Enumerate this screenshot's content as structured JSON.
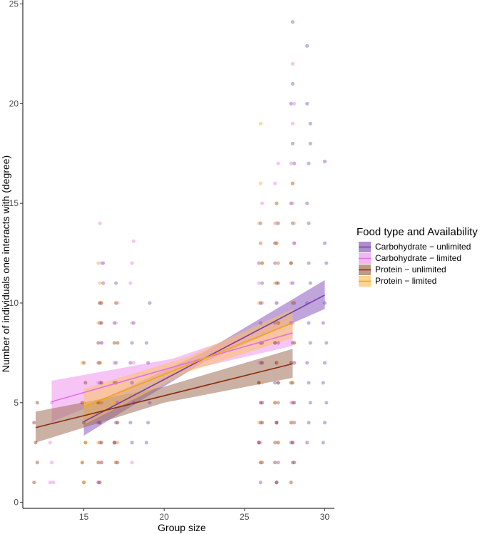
{
  "chart_data": {
    "type": "scatter",
    "title": "",
    "xlabel": "Group size",
    "ylabel": "Number of individuals one interacts with  (degree)",
    "xlim": [
      11.2,
      30.6
    ],
    "ylim": [
      -0.3,
      25.2
    ],
    "xticks": [
      15,
      20,
      25,
      30
    ],
    "yticks": [
      0,
      5,
      10,
      15,
      20,
      25
    ],
    "xtick_labels": [
      "15",
      "20",
      "25",
      "30"
    ],
    "ytick_labels": [
      "0",
      "5",
      "10",
      "15",
      "20",
      "25"
    ],
    "grid": false,
    "legend": {
      "title": "Food type and Availability",
      "position": "right",
      "entries": [
        "Carbohydrate − unlimited",
        "Carbohydrate − limited",
        "Protein − unlimited",
        "Protein − limited"
      ]
    },
    "series": [
      {
        "name": "Carbohydrate − unlimited",
        "color": "#7b3fa6",
        "fill": "#8a5bbd",
        "points": [
          [
            15.9,
            1.0
          ],
          [
            16.1,
            2.0
          ],
          [
            16.0,
            3.0
          ],
          [
            15.9,
            4.0
          ],
          [
            16.1,
            5.0
          ],
          [
            16.0,
            6.0
          ],
          [
            15.9,
            7.0
          ],
          [
            16.1,
            8.0
          ],
          [
            16.0,
            9.0
          ],
          [
            16.1,
            10.0
          ],
          [
            16.2,
            11.0
          ],
          [
            16.2,
            12.0
          ],
          [
            17.1,
            2.0
          ],
          [
            16.9,
            3.0
          ],
          [
            17.0,
            4.0
          ],
          [
            17.1,
            5.0
          ],
          [
            16.9,
            6.0
          ],
          [
            17.0,
            7.0
          ],
          [
            17.1,
            8.0
          ],
          [
            16.9,
            9.0
          ],
          [
            17.0,
            10.0
          ],
          [
            17.0,
            11.0
          ],
          [
            18.0,
            3.0
          ],
          [
            17.9,
            4.0
          ],
          [
            18.1,
            5.0
          ],
          [
            18.0,
            6.0
          ],
          [
            17.9,
            7.0
          ],
          [
            18.0,
            8.0
          ],
          [
            18.1,
            9.0
          ],
          [
            18.9,
            3.0
          ],
          [
            19.0,
            4.0
          ],
          [
            19.1,
            5.0
          ],
          [
            19.0,
            7.0
          ],
          [
            18.9,
            8.0
          ],
          [
            19.1,
            10.0
          ],
          [
            26.0,
            1.0
          ],
          [
            26.1,
            2.0
          ],
          [
            25.9,
            3.0
          ],
          [
            26.0,
            4.0
          ],
          [
            26.1,
            5.0
          ],
          [
            25.9,
            6.0
          ],
          [
            26.0,
            7.0
          ],
          [
            26.1,
            8.0
          ],
          [
            26.0,
            9.0
          ],
          [
            26.1,
            11.0
          ],
          [
            25.9,
            12.0
          ],
          [
            26.0,
            14.0
          ],
          [
            27.0,
            1.0
          ],
          [
            27.1,
            2.0
          ],
          [
            26.9,
            3.0
          ],
          [
            27.0,
            4.0
          ],
          [
            27.1,
            5.0
          ],
          [
            26.9,
            6.0
          ],
          [
            27.0,
            7.0
          ],
          [
            27.1,
            8.0
          ],
          [
            26.9,
            9.0
          ],
          [
            27.0,
            10.0
          ],
          [
            27.1,
            11.0
          ],
          [
            26.9,
            12.0
          ],
          [
            27.0,
            13.0
          ],
          [
            27.1,
            14.0
          ],
          [
            27.0,
            15.0
          ],
          [
            28.0,
            2.0
          ],
          [
            27.9,
            3.0
          ],
          [
            28.1,
            4.0
          ],
          [
            28.0,
            5.0
          ],
          [
            27.9,
            6.0
          ],
          [
            28.1,
            7.0
          ],
          [
            28.0,
            8.0
          ],
          [
            27.9,
            9.0
          ],
          [
            28.1,
            10.0
          ],
          [
            28.0,
            11.0
          ],
          [
            27.9,
            12.0
          ],
          [
            28.1,
            13.0
          ],
          [
            28.0,
            14.0
          ],
          [
            27.9,
            15.0
          ],
          [
            28.0,
            16.0
          ],
          [
            28.1,
            17.0
          ],
          [
            28.0,
            18.0
          ],
          [
            27.9,
            20.0
          ],
          [
            28.0,
            21.0
          ],
          [
            28.0,
            24.1
          ],
          [
            28.9,
            3.0
          ],
          [
            29.0,
            4.0
          ],
          [
            29.1,
            5.0
          ],
          [
            29.0,
            6.0
          ],
          [
            28.9,
            7.0
          ],
          [
            29.1,
            8.0
          ],
          [
            29.0,
            9.0
          ],
          [
            28.9,
            10.0
          ],
          [
            29.1,
            11.0
          ],
          [
            29.0,
            12.0
          ],
          [
            29.0,
            14.0
          ],
          [
            28.9,
            15.0
          ],
          [
            29.0,
            17.0
          ],
          [
            29.1,
            18.0
          ],
          [
            28.9,
            20.0
          ],
          [
            28.9,
            22.9
          ],
          [
            29.9,
            3.0
          ],
          [
            30.0,
            4.0
          ],
          [
            30.1,
            5.0
          ],
          [
            29.9,
            6.0
          ],
          [
            30.0,
            7.0
          ],
          [
            30.1,
            8.0
          ],
          [
            29.9,
            9.0
          ],
          [
            30.0,
            10.0
          ],
          [
            30.1,
            12.0
          ],
          [
            30.0,
            13.0
          ],
          [
            30.0,
            17.1
          ],
          [
            29.1,
            19.0
          ]
        ],
        "fit": {
          "x": [
            15.0,
            30.0
          ],
          "y": [
            4.05,
            10.4
          ]
        },
        "band": {
          "x": [
            15.0,
            22.5,
            30.0
          ],
          "lower": [
            3.35,
            7.05,
            9.7
          ],
          "upper": [
            4.75,
            7.55,
            11.15
          ]
        }
      },
      {
        "name": "Carbohydrate − limited",
        "color": "#e36fe6",
        "fill": "#ee95ef",
        "points": [
          [
            12.9,
            1.0
          ],
          [
            13.1,
            1.0
          ],
          [
            13.0,
            2.0
          ],
          [
            12.9,
            3.0
          ],
          [
            13.1,
            4.0
          ],
          [
            13.0,
            5.0
          ],
          [
            15.9,
            1.0
          ],
          [
            16.1,
            2.0
          ],
          [
            16.0,
            4.0
          ],
          [
            15.9,
            6.0
          ],
          [
            16.1,
            8.0
          ],
          [
            16.0,
            10.0
          ],
          [
            16.1,
            12.0
          ],
          [
            16.0,
            14.0
          ],
          [
            17.0,
            3.0
          ],
          [
            17.1,
            5.0
          ],
          [
            16.9,
            7.0
          ],
          [
            17.0,
            9.0
          ],
          [
            17.1,
            10.0
          ],
          [
            18.0,
            2.0
          ],
          [
            17.9,
            5.0
          ],
          [
            18.1,
            7.0
          ],
          [
            18.0,
            9.0
          ],
          [
            17.9,
            11.0
          ],
          [
            18.0,
            12.0
          ],
          [
            18.1,
            13.1
          ],
          [
            26.0,
            3.0
          ],
          [
            26.1,
            5.0
          ],
          [
            25.9,
            7.0
          ],
          [
            26.0,
            9.0
          ],
          [
            26.1,
            10.0
          ],
          [
            25.9,
            11.0
          ],
          [
            26.0,
            13.0
          ],
          [
            26.1,
            15.0
          ],
          [
            27.0,
            4.0
          ],
          [
            27.1,
            6.0
          ],
          [
            26.9,
            8.0
          ],
          [
            27.0,
            10.0
          ],
          [
            27.1,
            12.0
          ],
          [
            27.0,
            14.0
          ],
          [
            26.9,
            16.0
          ],
          [
            27.1,
            17.0
          ],
          [
            28.0,
            3.0
          ],
          [
            27.9,
            5.0
          ],
          [
            28.1,
            7.0
          ],
          [
            28.0,
            9.0
          ],
          [
            27.9,
            11.0
          ],
          [
            28.1,
            13.0
          ],
          [
            28.0,
            15.0
          ],
          [
            27.9,
            17.0
          ],
          [
            28.0,
            19.0
          ],
          [
            28.1,
            20.0
          ],
          [
            28.0,
            22.0
          ]
        ],
        "fit": {
          "x": [
            13.0,
            28.0
          ],
          "y": [
            5.05,
            8.5
          ]
        },
        "band": {
          "x": [
            13.0,
            20.5,
            28.0
          ],
          "lower": [
            4.05,
            6.45,
            7.85
          ],
          "upper": [
            6.1,
            7.2,
            9.25
          ]
        }
      },
      {
        "name": "Protein − unlimited",
        "color": "#8b2d0c",
        "fill": "#a06f59",
        "points": [
          [
            11.9,
            1.0
          ],
          [
            12.1,
            2.0
          ],
          [
            12.0,
            3.0
          ],
          [
            11.9,
            4.0
          ],
          [
            12.1,
            5.0
          ],
          [
            15.0,
            1.0
          ],
          [
            14.9,
            2.0
          ],
          [
            15.1,
            3.0
          ],
          [
            15.0,
            4.0
          ],
          [
            14.9,
            5.0
          ],
          [
            15.1,
            6.0
          ],
          [
            15.0,
            7.0
          ],
          [
            16.0,
            1.0
          ],
          [
            15.9,
            2.0
          ],
          [
            16.1,
            3.0
          ],
          [
            16.0,
            4.0
          ],
          [
            15.9,
            5.0
          ],
          [
            16.1,
            6.0
          ],
          [
            16.0,
            7.0
          ],
          [
            15.9,
            8.0
          ],
          [
            16.1,
            9.0
          ],
          [
            16.0,
            10.0
          ],
          [
            17.0,
            2.0
          ],
          [
            16.9,
            3.0
          ],
          [
            17.1,
            4.0
          ],
          [
            17.0,
            6.0
          ],
          [
            16.9,
            8.0
          ],
          [
            26.0,
            2.0
          ],
          [
            25.9,
            3.0
          ],
          [
            26.1,
            4.0
          ],
          [
            26.0,
            5.0
          ],
          [
            25.9,
            6.0
          ],
          [
            26.1,
            7.0
          ],
          [
            26.0,
            8.0
          ],
          [
            26.0,
            10.0
          ],
          [
            26.1,
            12.0
          ],
          [
            27.0,
            1.0
          ],
          [
            26.9,
            2.0
          ],
          [
            27.1,
            3.0
          ],
          [
            27.0,
            4.0
          ],
          [
            26.9,
            5.0
          ],
          [
            27.1,
            6.0
          ],
          [
            27.0,
            7.0
          ],
          [
            26.9,
            8.0
          ],
          [
            27.1,
            9.0
          ],
          [
            27.0,
            11.0
          ],
          [
            26.9,
            13.0
          ],
          [
            27.9,
            1.0
          ],
          [
            28.1,
            2.0
          ],
          [
            28.0,
            3.0
          ],
          [
            27.9,
            4.0
          ],
          [
            28.1,
            5.0
          ],
          [
            28.0,
            6.0
          ],
          [
            27.9,
            7.0
          ],
          [
            28.1,
            8.0
          ],
          [
            28.0,
            10.0
          ],
          [
            27.9,
            12.0
          ]
        ],
        "fit": {
          "x": [
            12.0,
            28.0
          ],
          "y": [
            3.75,
            6.95
          ]
        },
        "band": {
          "x": [
            12.0,
            20.0,
            28.0
          ],
          "lower": [
            3.0,
            5.0,
            6.25
          ],
          "upper": [
            4.55,
            5.8,
            7.7
          ]
        }
      },
      {
        "name": "Protein − limited",
        "color": "#f5a50c",
        "fill": "#f9c260",
        "points": [
          [
            15.0,
            1.0
          ],
          [
            14.9,
            2.0
          ],
          [
            15.1,
            3.0
          ],
          [
            15.0,
            5.0
          ],
          [
            14.9,
            7.0
          ],
          [
            16.0,
            2.0
          ],
          [
            15.9,
            3.0
          ],
          [
            16.1,
            5.0
          ],
          [
            16.0,
            7.0
          ],
          [
            15.9,
            9.0
          ],
          [
            16.1,
            10.0
          ],
          [
            16.0,
            11.0
          ],
          [
            15.9,
            12.0
          ],
          [
            17.0,
            2.0
          ],
          [
            17.1,
            3.0
          ],
          [
            16.9,
            5.0
          ],
          [
            17.0,
            6.0
          ],
          [
            17.1,
            8.0
          ],
          [
            17.0,
            10.0
          ],
          [
            26.0,
            2.0
          ],
          [
            25.9,
            4.0
          ],
          [
            26.1,
            6.0
          ],
          [
            26.0,
            8.0
          ],
          [
            25.9,
            10.0
          ],
          [
            26.1,
            12.0
          ],
          [
            26.0,
            13.0
          ],
          [
            25.9,
            14.0
          ],
          [
            26.0,
            16.0
          ],
          [
            26.0,
            19.0
          ],
          [
            27.0,
            3.0
          ],
          [
            26.9,
            5.0
          ],
          [
            27.1,
            7.0
          ],
          [
            27.0,
            9.0
          ],
          [
            26.9,
            11.0
          ],
          [
            27.1,
            12.0
          ],
          [
            27.0,
            13.0
          ],
          [
            26.9,
            14.0
          ],
          [
            27.0,
            15.0
          ],
          [
            28.0,
            4.0
          ],
          [
            27.9,
            6.0
          ],
          [
            28.1,
            8.0
          ],
          [
            28.0,
            10.0
          ],
          [
            27.9,
            12.0
          ],
          [
            28.1,
            14.0
          ],
          [
            28.0,
            16.0
          ]
        ],
        "fit": {
          "x": [
            15.0,
            28.0
          ],
          "y": [
            4.8,
            9.0
          ]
        },
        "band": {
          "x": [
            15.0,
            21.5,
            28.0
          ],
          "lower": [
            3.9,
            6.55,
            8.25
          ],
          "upper": [
            5.7,
            7.3,
            9.7
          ]
        }
      }
    ]
  }
}
